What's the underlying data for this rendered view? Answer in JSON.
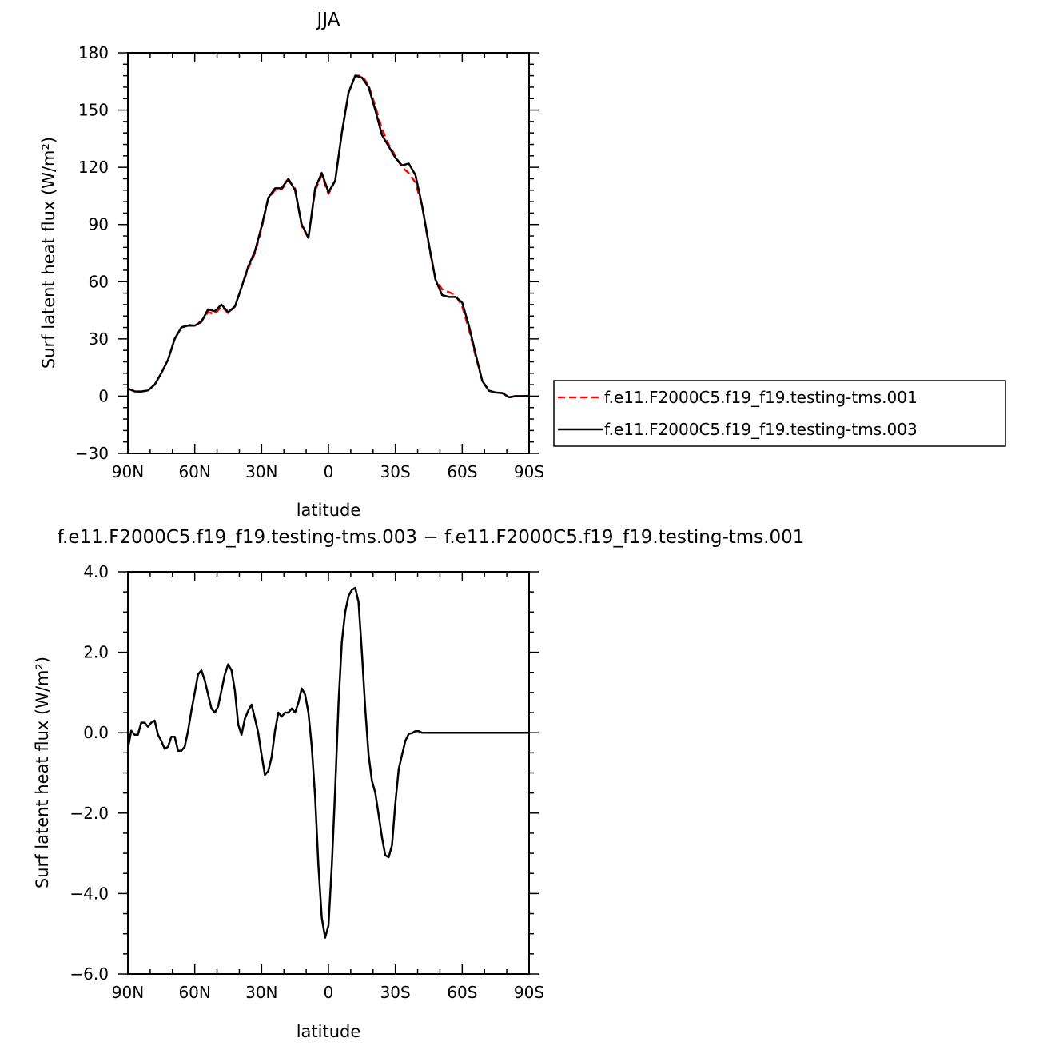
{
  "chart_data": [
    {
      "type": "line",
      "title": "JJA",
      "xlabel": "latitude",
      "ylabel": "Surf latent heat flux (W/m²)",
      "xlim": [
        90,
        -90
      ],
      "ylim": [
        -30,
        180
      ],
      "x_ticks": [
        90,
        60,
        30,
        0,
        -30,
        -60,
        -90
      ],
      "x_tick_labels": [
        "90N",
        "60N",
        "30N",
        "0",
        "30S",
        "60S",
        "90S"
      ],
      "y_ticks": [
        -30,
        0,
        30,
        60,
        90,
        120,
        150,
        180
      ],
      "y_tick_labels": [
        "−30",
        "0",
        "30",
        "60",
        "90",
        "120",
        "150",
        "180"
      ],
      "grid": false,
      "legend_position": "right",
      "x": [
        90,
        87,
        84,
        81,
        78,
        75,
        72,
        69,
        66,
        63,
        60,
        57,
        54,
        51,
        48,
        45,
        42,
        39,
        36,
        33,
        30,
        27,
        24,
        21,
        18,
        15,
        12,
        9,
        6,
        3,
        0,
        -3,
        -6,
        -9,
        -12,
        -15,
        -18,
        -21,
        -24,
        -27,
        -30,
        -33,
        -36,
        -39,
        -42,
        -45,
        -48,
        -51,
        -54,
        -57,
        -60,
        -63,
        -66,
        -69,
        -72,
        -75,
        -78,
        -81,
        -84,
        -87,
        -90
      ],
      "series": [
        {
          "name": "f.e11.F2000C5.f19_f19.testing-tms.001",
          "color": "#ff0000",
          "dash": "dashed",
          "values": [
            4,
            2.6,
            2.4,
            3,
            6,
            12,
            19,
            30,
            36,
            37.5,
            37,
            39.5,
            44,
            43,
            47,
            43.5,
            47,
            57,
            67,
            75,
            88,
            104,
            108,
            108.5,
            113,
            109,
            89,
            83,
            108,
            116,
            106,
            113,
            138,
            159,
            168,
            168,
            163,
            152,
            140,
            132,
            126,
            120,
            117,
            112,
            100,
            79,
            61,
            56,
            54.5,
            53,
            47,
            35,
            21,
            8,
            2.8,
            1.9,
            1.6,
            -0.6,
            0,
            0,
            0
          ]
        },
        {
          "name": "f.e11.F2000C5.f19_f19.testing-tms.003",
          "color": "#000000",
          "dash": "solid",
          "values": [
            4,
            2.5,
            2.4,
            3,
            6,
            12,
            19,
            30,
            36,
            37,
            37,
            39,
            45.5,
            44.5,
            48,
            44,
            47,
            57,
            68,
            76,
            89,
            104,
            109,
            109,
            114,
            108,
            90,
            83,
            109,
            117,
            107,
            113,
            138,
            159,
            168,
            167,
            162,
            150,
            137,
            131,
            125,
            121,
            122,
            116,
            100,
            80,
            61,
            53,
            52,
            52,
            49,
            37,
            22,
            8,
            2.8,
            1.9,
            1.6,
            -0.6,
            0,
            0,
            0
          ]
        }
      ]
    },
    {
      "type": "line",
      "title": "f.e11.F2000C5.f19_f19.testing-tms.003 − f.e11.F2000C5.f19_f19.testing-tms.001",
      "xlabel": "latitude",
      "ylabel": "Surf latent heat flux (W/m²)",
      "xlim": [
        90,
        -90
      ],
      "ylim": [
        -6,
        4
      ],
      "x_ticks": [
        90,
        60,
        30,
        0,
        -30,
        -60,
        -90
      ],
      "x_tick_labels": [
        "90N",
        "60N",
        "30N",
        "0",
        "30S",
        "60S",
        "90S"
      ],
      "y_ticks": [
        -6,
        -4,
        -2,
        0,
        2,
        4
      ],
      "y_tick_labels": [
        "−6.0",
        "−4.0",
        "−2.0",
        "0.0",
        "2.0",
        "4.0"
      ],
      "grid": false,
      "x": [
        90,
        88.5,
        87,
        85.5,
        84,
        82.5,
        81,
        79.5,
        78,
        76.5,
        75,
        73.5,
        72,
        70.5,
        69,
        67.5,
        66,
        64.5,
        63,
        61.5,
        60,
        58.5,
        57,
        55.5,
        54,
        52.5,
        51,
        49.5,
        48,
        46.5,
        45,
        43.5,
        42,
        40.5,
        39,
        37.5,
        36,
        34.5,
        33,
        31.5,
        30,
        28.5,
        27,
        25.5,
        24,
        22.5,
        21,
        19.5,
        18,
        16.5,
        15,
        13.5,
        12,
        10.5,
        9,
        7.5,
        6,
        4.5,
        3,
        1.5,
        0,
        -1.5,
        -3,
        -4.5,
        -6,
        -7.5,
        -9,
        -10.5,
        -12,
        -13.5,
        -15,
        -16.5,
        -18,
        -19.5,
        -21,
        -22.5,
        -24,
        -25.5,
        -27,
        -28.5,
        -30,
        -31.5,
        -33,
        -34.5,
        -36,
        -37.5,
        -39,
        -40.5,
        -42,
        -43.5,
        -45,
        -46.5,
        -48,
        -49.5,
        -51,
        -52.5,
        -54,
        -55.5,
        -57,
        -58.5,
        -60,
        -61.5,
        -63,
        -64.5,
        -66,
        -67.5,
        -69,
        -70.5,
        -72,
        -73.5,
        -75,
        -76.5,
        -78,
        -79.5,
        -81,
        -82.5,
        -84,
        -85.5,
        -87,
        -88.5,
        -90
      ],
      "series": [
        {
          "color": "#000000",
          "values": [
            -0.4,
            0.05,
            -0.05,
            -0.05,
            0.25,
            0.25,
            0.15,
            0.25,
            0.3,
            -0.05,
            -0.2,
            -0.4,
            -0.35,
            -0.1,
            -0.1,
            -0.45,
            -0.45,
            -0.35,
            0.05,
            0.55,
            1,
            1.45,
            1.55,
            1.3,
            0.95,
            0.6,
            0.5,
            0.65,
            1.05,
            1.45,
            1.7,
            1.55,
            1.05,
            0.2,
            -0.05,
            0.35,
            0.55,
            0.7,
            0.35,
            0,
            -0.55,
            -1.05,
            -0.95,
            -0.6,
            0.05,
            0.5,
            0.4,
            0.5,
            0.5,
            0.6,
            0.5,
            0.75,
            1.1,
            0.95,
            0.5,
            -0.35,
            -1.6,
            -3.3,
            -4.6,
            -5.1,
            -4.8,
            -3.3,
            -1.4,
            0.75,
            2.25,
            3.0,
            3.4,
            3.55,
            3.6,
            3.25,
            2.0,
            0.6,
            -0.55,
            -1.2,
            -1.5,
            -2.05,
            -2.6,
            -3.05,
            -3.1,
            -2.8,
            -1.75,
            -0.9,
            -0.55,
            -0.2,
            -0.03,
            -0.01,
            0.04,
            0.04,
            0,
            0,
            0,
            0,
            0,
            0,
            0,
            0,
            0,
            0,
            0,
            0,
            0,
            0,
            0,
            0,
            0,
            0,
            0,
            0,
            0,
            0,
            0,
            0,
            0,
            0,
            0,
            0,
            0,
            0,
            0,
            0,
            0
          ]
        }
      ]
    }
  ]
}
